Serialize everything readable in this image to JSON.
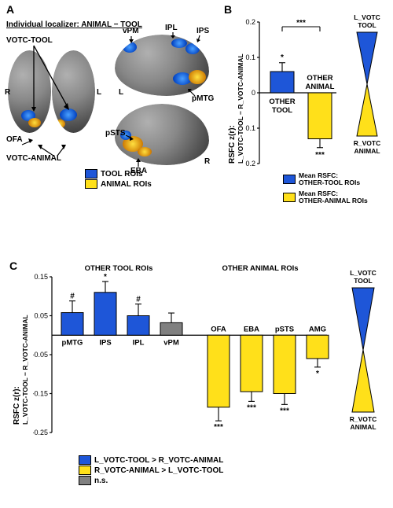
{
  "panelA": {
    "label": "A",
    "title": "Individual localizer: ANIMAL − TOOL",
    "regions": {
      "votc_tool": "VOTC-TOOL",
      "votc_animal": "VOTC-ANIMAL",
      "ofa": "OFA",
      "vpm": "vPM",
      "ipl": "IPL",
      "ips": "IPS",
      "pmtg": "pMTG",
      "psts": "pSTS",
      "eba": "EBA",
      "R": "R",
      "L": "L"
    },
    "legend": {
      "tool": "TOOL ROIs",
      "animal": "ANIMAL ROIs",
      "tool_color": "#1e56d8",
      "animal_color": "#ffe01a"
    }
  },
  "panelB": {
    "label": "B",
    "ylabel_line1": "RSFC z(r):",
    "ylabel_line2": "L_VOTC-TOOL − R_VOTC-ANIMAL",
    "ylim": [
      -0.2,
      0.2
    ],
    "yticks": [
      -0.2,
      -0.1,
      0,
      0.1,
      0.2
    ],
    "bars": [
      {
        "name": "OTHER TOOL",
        "value": 0.06,
        "err": 0.025,
        "color": "#1e56d8",
        "sig": "*",
        "label_pos": "below"
      },
      {
        "name": "OTHER ANIMAL",
        "value": -0.13,
        "err": 0.025,
        "color": "#ffe01a",
        "sig": "***",
        "label_pos": "above"
      }
    ],
    "bracket_sig": "***",
    "legend": [
      {
        "color": "#1e56d8",
        "text": "Mean RSFC: OTHER-TOOL ROIs"
      },
      {
        "color": "#ffe01a",
        "text": "Mean RSFC: OTHER-ANIMAL ROIs"
      }
    ],
    "schematic": {
      "top": "L_VOTC TOOL",
      "bottom": "R_VOTC ANIMAL",
      "top_color": "#1e56d8",
      "bottom_color": "#ffe01a"
    }
  },
  "panelC": {
    "label": "C",
    "ylabel_line1": "RSFC z(r):",
    "ylabel_line2": "L_VOTC-TOOL − R_VOTC-ANIMAL",
    "ylim": [
      -0.25,
      0.15
    ],
    "yticks": [
      -0.25,
      -0.15,
      -0.05,
      0.05,
      0.15
    ],
    "group_titles": {
      "left": "OTHER TOOL ROIs",
      "right": "OTHER ANIMAL ROIs"
    },
    "bars": [
      {
        "name": "pMTG",
        "value": 0.058,
        "err": 0.03,
        "color": "#1e56d8",
        "sig": "#"
      },
      {
        "name": "IPS",
        "value": 0.11,
        "err": 0.028,
        "color": "#1e56d8",
        "sig": "*"
      },
      {
        "name": "IPL",
        "value": 0.05,
        "err": 0.03,
        "color": "#1e56d8",
        "sig": "#"
      },
      {
        "name": "vPM",
        "value": 0.032,
        "err": 0.025,
        "color": "#808080",
        "sig": ""
      },
      {
        "name": "OFA",
        "value": -0.185,
        "err": 0.035,
        "color": "#ffe01a",
        "sig": "***"
      },
      {
        "name": "EBA",
        "value": -0.145,
        "err": 0.025,
        "color": "#ffe01a",
        "sig": "***"
      },
      {
        "name": "pSTS",
        "value": -0.15,
        "err": 0.028,
        "color": "#ffe01a",
        "sig": "***"
      },
      {
        "name": "AMG",
        "value": -0.06,
        "err": 0.022,
        "color": "#ffe01a",
        "sig": "*"
      }
    ],
    "legend": [
      {
        "color": "#1e56d8",
        "text": "L_VOTC-TOOL > R_VOTC-ANIMAL"
      },
      {
        "color": "#ffe01a",
        "text": "R_VOTC-ANIMAL > L_VOTC-TOOL"
      },
      {
        "color": "#808080",
        "text": "n.s."
      }
    ],
    "schematic": {
      "top": "L_VOTC TOOL",
      "bottom": "R_VOTC ANIMAL",
      "top_color": "#1e56d8",
      "bottom_color": "#ffe01a"
    }
  }
}
